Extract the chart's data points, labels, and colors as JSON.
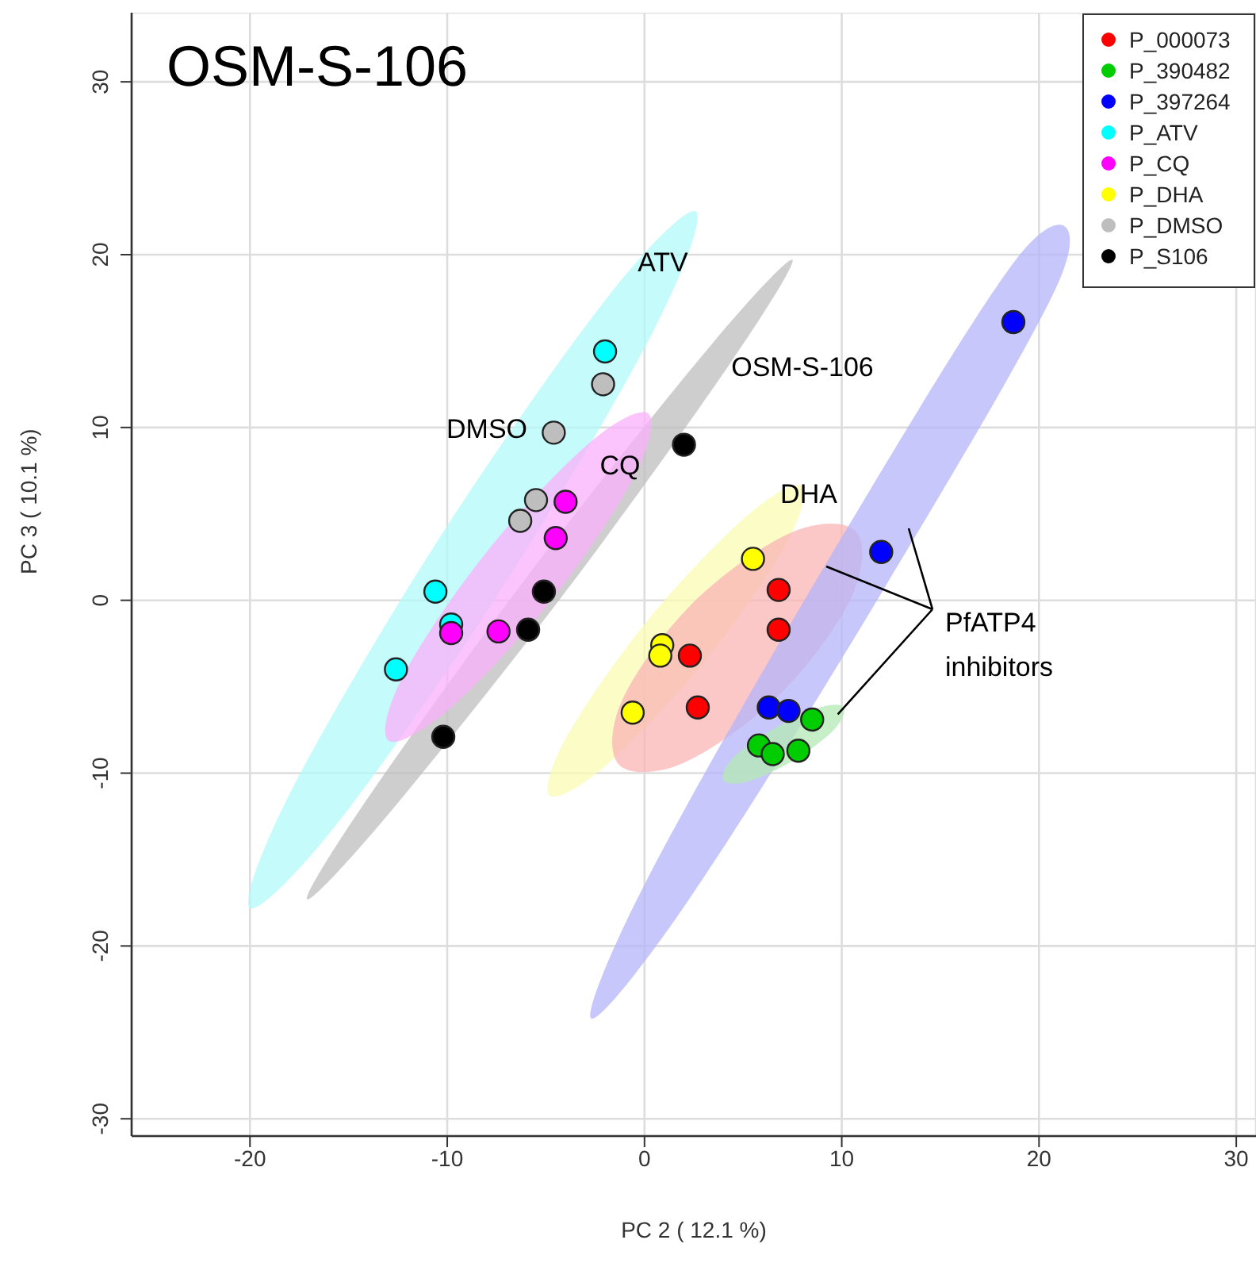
{
  "chart_data": {
    "type": "scatter",
    "title": "OSM-S-106",
    "xlabel": "PC 2 ( 12.1 %)",
    "ylabel": "PC 3 ( 10.1 %)",
    "xlim": [
      -26,
      31
    ],
    "ylim": [
      -31,
      34
    ],
    "xticks": [
      -20,
      -10,
      0,
      10,
      20,
      30
    ],
    "yticks": [
      -30,
      -20,
      -10,
      0,
      10,
      20,
      30
    ],
    "grid": true,
    "legend": "top right",
    "marker": "circle",
    "annotations": [
      "ATV",
      "DMSO",
      "CQ",
      "OSM-S-106",
      "DHA",
      {
        "text": "PfATP4\ninhibitors",
        "x": 9.8,
        "y": -6.6
      }
    ],
    "series": [
      {
        "type": "area",
        "marker": "none",
        "color": "#b2fafa",
        "x": [
          2.6,
          0.5,
          -7,
          -15.5,
          -20,
          -17.9,
          -10.4,
          -1.9
        ],
        "values": [
          22.5,
          15.7,
          1.1,
          -12.8,
          -17.8,
          -11,
          3.6,
          17.5
        ]
      },
      {
        "type": "area",
        "marker": "none",
        "color": "#bebebe",
        "x": [
          7.5,
          4.4,
          -4,
          -13,
          -17.1,
          -14,
          -5.6,
          3.4
        ],
        "values": [
          19.7,
          13.8,
          0.5,
          -12.4,
          -17.3,
          -11.4,
          1.9,
          14.8
        ]
      },
      {
        "type": "area",
        "marker": "none",
        "color": "#fbb0fb",
        "x": [
          0.2,
          -0.6,
          -4.8,
          -10,
          -13,
          -12.2,
          -8,
          -2.8
        ],
        "values": [
          10.8,
          7,
          -0.1,
          -6.4,
          -8.1,
          -4.3,
          2.8,
          9.1
        ]
      },
      {
        "type": "area",
        "marker": "none",
        "color": "#fbfbb4",
        "x": [
          8,
          7.1,
          3,
          -2,
          -4.8,
          -3.9,
          0.2,
          5.2
        ],
        "values": [
          6.6,
          3.1,
          -3.6,
          -9.6,
          -11.3,
          -7.8,
          -1.1,
          4.9
        ]
      },
      {
        "type": "area",
        "marker": "none",
        "color": "#fab4b4",
        "x": [
          10.7,
          10.5,
          6.9,
          2,
          -1.3,
          -1.1,
          2.5,
          7.4
        ],
        "values": [
          4,
          0.2,
          -5.4,
          -9.4,
          -9.5,
          -5.7,
          -0.1,
          3.9
        ]
      },
      {
        "type": "area",
        "marker": "none",
        "color": "#b4b4fa",
        "x": [
          21.1,
          12,
          2.2,
          -2.7,
          0.2,
          9.3,
          19.1
        ],
        "values": [
          18.7,
          0.4,
          -17.4,
          -24.2,
          -16,
          2.3,
          20.1
        ]
      },
      {
        "type": "area",
        "marker": "none",
        "color": "#b4e9b4",
        "x": [
          10.1,
          9.6,
          7.5,
          5.2,
          4,
          4.5,
          6.6,
          8.9
        ],
        "values": [
          -6.2,
          -7.5,
          -9.3,
          -10.5,
          -10.4,
          -9.1,
          -7.4,
          -6.2
        ]
      },
      {
        "name": "P_000073",
        "color": "#ff0000",
        "x": [
          2.3,
          2.7,
          6.8,
          6.8
        ],
        "values": [
          -3.2,
          -6.2,
          0.6,
          -1.7
        ]
      },
      {
        "name": "P_390482",
        "color": "#00cd00",
        "x": [
          5.8,
          6.5,
          7.8,
          8.5
        ],
        "values": [
          -8.4,
          -8.9,
          -8.7,
          -6.9
        ]
      },
      {
        "name": "P_397264",
        "color": "#0000ff",
        "x": [
          6.3,
          7.3,
          12,
          18.7
        ],
        "values": [
          -6.2,
          -6.4,
          2.8,
          16.1
        ]
      },
      {
        "name": "P_ATV",
        "color": "#00ffff",
        "x": [
          -2,
          -10.6,
          -9.8,
          -12.6
        ],
        "values": [
          14.4,
          0.5,
          -1.4,
          -4
        ]
      },
      {
        "name": "P_CQ",
        "color": "#ff00ff",
        "x": [
          -4,
          -4.5,
          -9.8,
          -7.4
        ],
        "values": [
          5.7,
          3.6,
          -1.9,
          -1.8
        ]
      },
      {
        "name": "P_DHA",
        "color": "#ffff00",
        "x": [
          5.5,
          0.9,
          0.8,
          -0.6
        ],
        "values": [
          2.4,
          -2.6,
          -3.2,
          -6.5
        ]
      },
      {
        "name": "P_DMSO",
        "color": "#bebebe",
        "x": [
          -2.1,
          -4.6,
          -5.5,
          -6.3
        ],
        "values": [
          12.5,
          9.7,
          5.8,
          4.6
        ]
      },
      {
        "name": "P_S106",
        "color": "#000000",
        "x": [
          2,
          -5.1,
          -5.9,
          -10.2
        ],
        "values": [
          9,
          0.5,
          -1.7,
          -7.9
        ]
      }
    ]
  }
}
